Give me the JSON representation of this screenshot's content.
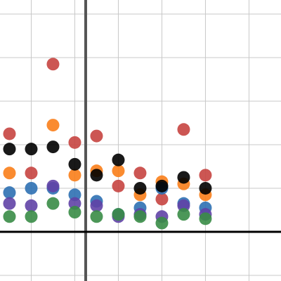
{
  "chart_data": {
    "type": "scatter",
    "x": [
      -7,
      -5,
      -3,
      -1,
      1,
      3,
      5,
      7,
      9,
      11
    ],
    "series": [
      {
        "color": "#c74440",
        "values": [
          9.0,
          5.4,
          15.4,
          8.2,
          8.8,
          4.2,
          5.4,
          3.0,
          9.4,
          5.2
        ]
      },
      {
        "color": "#fa7e19",
        "values": [
          5.4,
          null,
          9.8,
          5.2,
          5.6,
          5.6,
          3.4,
          4.6,
          4.4,
          3.4
        ]
      },
      {
        "color": "#2d70b3",
        "values": [
          3.6,
          4.0,
          4.0,
          3.4,
          2.8,
          1.6,
          2.2,
          4.0,
          2.6,
          2.2
        ]
      },
      {
        "color": "#6042a6",
        "values": [
          2.6,
          2.4,
          4.2,
          2.6,
          2.4,
          1.4,
          1.6,
          1.4,
          2.4,
          1.6
        ]
      },
      {
        "color": "#388c46",
        "values": [
          1.4,
          1.4,
          2.6,
          1.8,
          1.4,
          1.6,
          1.4,
          0.8,
          1.6,
          1.2
        ]
      },
      {
        "color": "#000000",
        "values": [
          7.6,
          7.6,
          7.8,
          6.2,
          5.2,
          6.6,
          4.0,
          4.2,
          5.0,
          4.0
        ]
      }
    ],
    "xlim": [
      -7.87,
      17.94
    ],
    "ylim": [
      -4.52,
      21.29
    ],
    "xticks": [
      -5,
      -1,
      3,
      7,
      11,
      15
    ],
    "yticks": [
      -4,
      4,
      8,
      12,
      16,
      20
    ],
    "grid": true
  }
}
